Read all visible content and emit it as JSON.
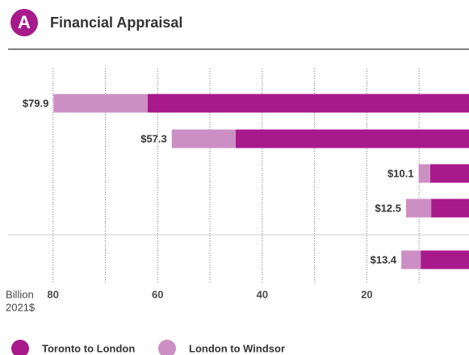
{
  "chart_data": {
    "type": "stacked_barh",
    "badge": "A",
    "title": "Financial Appraisal",
    "xlabel_lines": [
      "Billion",
      "2021$"
    ],
    "series": [
      {
        "name": "Toronto to London",
        "color": "#a8198c",
        "values": [
          61.9,
          45.1,
          7.9,
          7.7,
          9.7
        ]
      },
      {
        "name": "London to Windsor",
        "color": "#cc8fc3",
        "values": [
          18.0,
          12.2,
          2.2,
          4.8,
          3.7
        ]
      }
    ],
    "totals": [
      79.9,
      57.3,
      10.1,
      12.5,
      13.4
    ],
    "total_labels": [
      "$79.9",
      "$57.3",
      "$10.1",
      "$12.5",
      "$13.4"
    ],
    "xlim": [
      0,
      88.6
    ],
    "x_reversed": true,
    "xticks": [
      80,
      60,
      40,
      20
    ],
    "x_minor_ticks": [
      70,
      50,
      30,
      10
    ],
    "grid": true
  }
}
